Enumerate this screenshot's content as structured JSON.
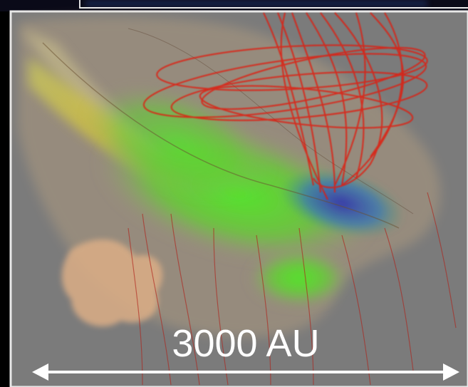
{
  "scale_bar": {
    "label": "3000 AU"
  }
}
